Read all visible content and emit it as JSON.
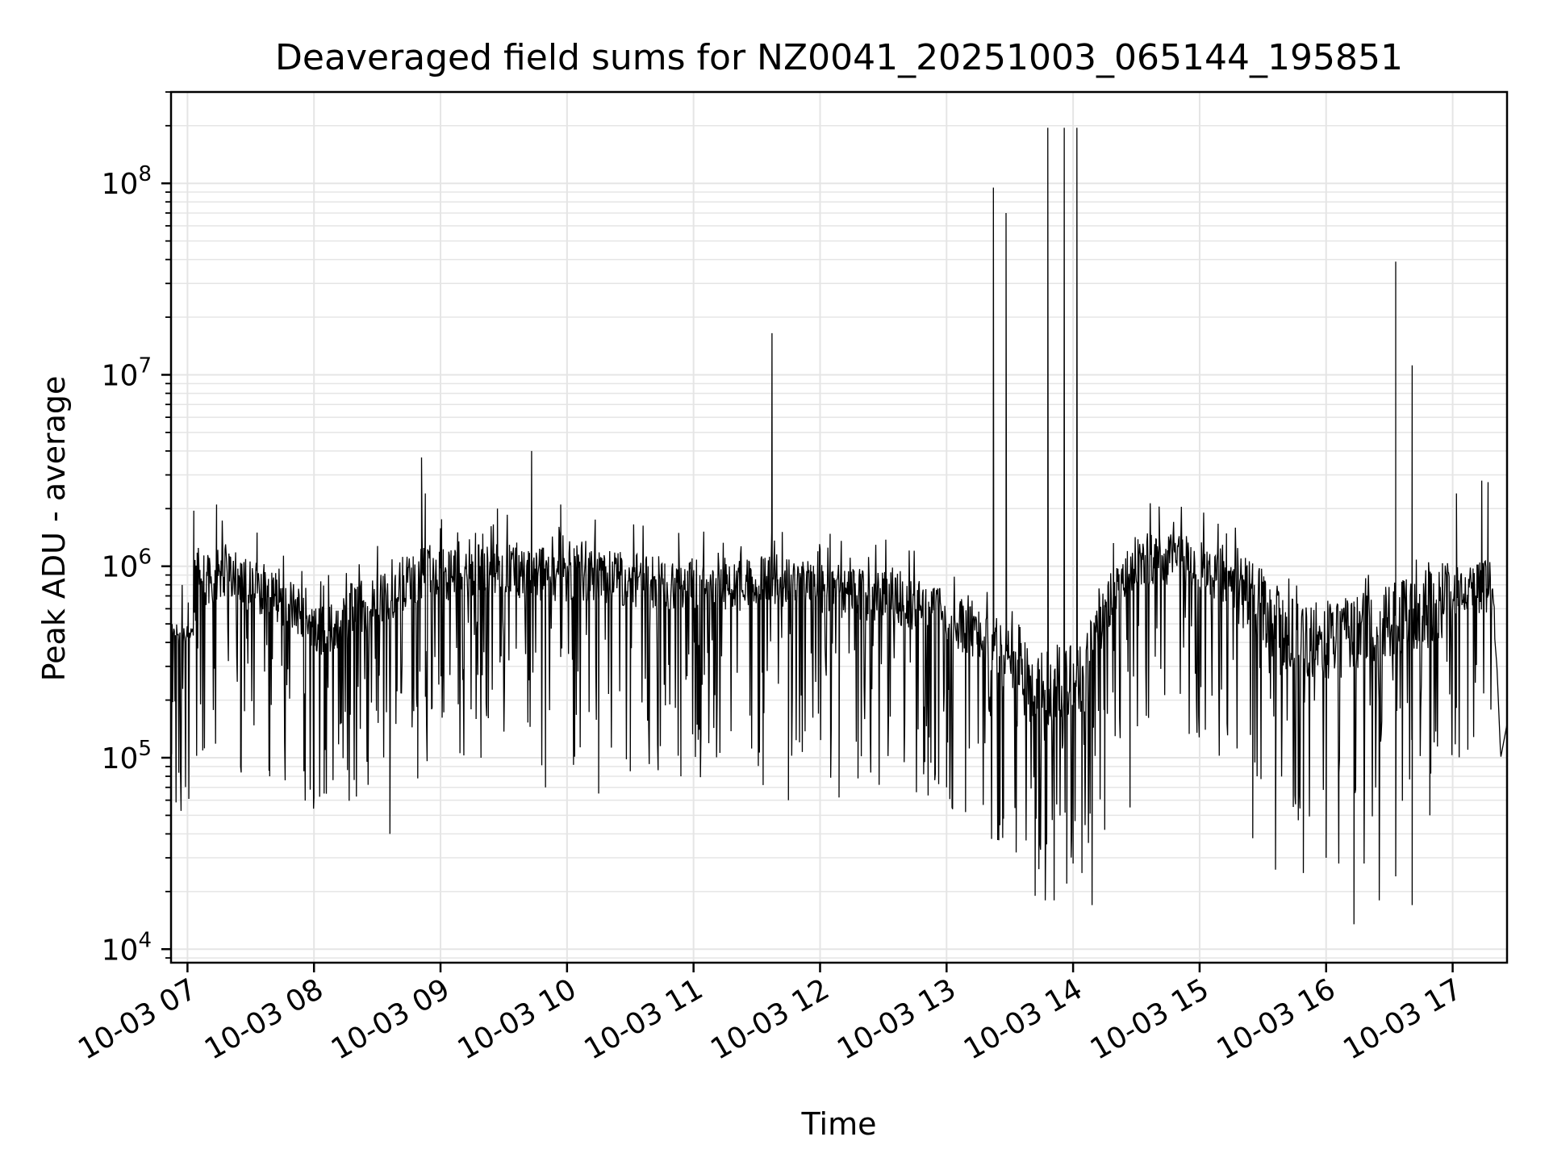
{
  "chart_data": {
    "type": "line",
    "title": "Deaveraged field sums for NZ0041_20251003_065144_195851",
    "xlabel": "Time",
    "ylabel": "Peak ADU - average",
    "yscale": "log",
    "ylim": [
      8500,
      300000000
    ],
    "xlim_hours": [
      6.87,
      17.43
    ],
    "grid": true,
    "legend": "none",
    "line_color": "#000000",
    "grid_color": "#e5e5e5",
    "x_ticks": [
      {
        "hour": 7,
        "label": "10-03 07"
      },
      {
        "hour": 8,
        "label": "10-03 08"
      },
      {
        "hour": 9,
        "label": "10-03 09"
      },
      {
        "hour": 10,
        "label": "10-03 10"
      },
      {
        "hour": 11,
        "label": "10-03 11"
      },
      {
        "hour": 12,
        "label": "10-03 12"
      },
      {
        "hour": 13,
        "label": "10-03 13"
      },
      {
        "hour": 14,
        "label": "10-03 14"
      },
      {
        "hour": 15,
        "label": "10-03 15"
      },
      {
        "hour": 16,
        "label": "10-03 16"
      },
      {
        "hour": 17,
        "label": "10-03 17"
      }
    ],
    "y_ticks": [
      {
        "value": 10000,
        "base": "10",
        "exp": "4"
      },
      {
        "value": 100000,
        "base": "10",
        "exp": "5"
      },
      {
        "value": 1000000,
        "base": "10",
        "exp": "6"
      },
      {
        "value": 10000000,
        "base": "10",
        "exp": "7"
      },
      {
        "value": 100000000,
        "base": "10",
        "exp": "8"
      }
    ],
    "series": [
      {
        "name": "Peak ADU - average",
        "baseline_points": [
          [
            6.87,
            500000
          ],
          [
            6.95,
            430000
          ],
          [
            7.05,
            460000
          ],
          [
            7.08,
            1100000
          ],
          [
            7.12,
            850000
          ],
          [
            7.3,
            900000
          ],
          [
            7.5,
            800000
          ],
          [
            7.7,
            700000
          ],
          [
            7.9,
            550000
          ],
          [
            8.1,
            450000
          ],
          [
            8.3,
            600000
          ],
          [
            8.5,
            650000
          ],
          [
            8.7,
            800000
          ],
          [
            8.9,
            950000
          ],
          [
            9.1,
            900000
          ],
          [
            9.3,
            950000
          ],
          [
            9.5,
            950000
          ],
          [
            9.7,
            920000
          ],
          [
            9.9,
            900000
          ],
          [
            10.1,
            880000
          ],
          [
            10.3,
            880000
          ],
          [
            10.5,
            850000
          ],
          [
            10.7,
            820000
          ],
          [
            10.9,
            800000
          ],
          [
            11.1,
            780000
          ],
          [
            11.3,
            800000
          ],
          [
            11.5,
            820000
          ],
          [
            11.7,
            800000
          ],
          [
            11.9,
            780000
          ],
          [
            12.1,
            750000
          ],
          [
            12.3,
            720000
          ],
          [
            12.5,
            700000
          ],
          [
            12.7,
            650000
          ],
          [
            12.9,
            580000
          ],
          [
            13.1,
            500000
          ],
          [
            13.3,
            400000
          ],
          [
            13.5,
            300000
          ],
          [
            13.7,
            230000
          ],
          [
            13.9,
            220000
          ],
          [
            14.1,
            280000
          ],
          [
            14.3,
            700000
          ],
          [
            14.5,
            1050000
          ],
          [
            14.7,
            1100000
          ],
          [
            14.9,
            1050000
          ],
          [
            15.1,
            950000
          ],
          [
            15.3,
            800000
          ],
          [
            15.5,
            600000
          ],
          [
            15.7,
            450000
          ],
          [
            15.9,
            400000
          ],
          [
            16.1,
            420000
          ],
          [
            16.3,
            450000
          ],
          [
            16.5,
            500000
          ],
          [
            16.7,
            550000
          ],
          [
            16.9,
            650000
          ],
          [
            17.1,
            750000
          ],
          [
            17.3,
            800000
          ],
          [
            17.35,
            300000
          ],
          [
            17.38,
            100000
          ],
          [
            17.43,
            150000
          ]
        ],
        "spikes": [
          [
            7.05,
            1950000
          ],
          [
            7.23,
            2100000
          ],
          [
            7.55,
            1500000
          ],
          [
            8.85,
            3700000
          ],
          [
            8.88,
            2400000
          ],
          [
            9.45,
            2000000
          ],
          [
            9.72,
            4000000
          ],
          [
            9.95,
            2100000
          ],
          [
            11.62,
            16500000
          ],
          [
            13.37,
            95000000
          ],
          [
            13.47,
            70000000
          ],
          [
            13.8,
            195000000
          ],
          [
            13.93,
            195000000
          ],
          [
            14.03,
            195000000
          ],
          [
            14.68,
            2050000
          ],
          [
            16.55,
            39000000
          ],
          [
            16.68,
            11200000
          ],
          [
            17.03,
            2400000
          ],
          [
            17.23,
            2800000
          ],
          [
            17.28,
            2750000
          ]
        ],
        "dips": [
          [
            7.12,
            160000
          ],
          [
            7.42,
            90000
          ],
          [
            7.65,
            80000
          ],
          [
            7.92,
            85000
          ],
          [
            8.0,
            62000
          ],
          [
            8.08,
            65000
          ],
          [
            8.6,
            40000
          ],
          [
            8.82,
            78000
          ],
          [
            9.32,
            100000
          ],
          [
            9.83,
            70000
          ],
          [
            10.25,
            65000
          ],
          [
            10.5,
            85000
          ],
          [
            10.9,
            80000
          ],
          [
            11.55,
            72000
          ],
          [
            11.75,
            60000
          ],
          [
            12.15,
            62000
          ],
          [
            12.3,
            78000
          ],
          [
            13.0,
            70000
          ],
          [
            13.15,
            52000
          ],
          [
            13.45,
            48000
          ],
          [
            13.55,
            32000
          ],
          [
            13.7,
            19000
          ],
          [
            13.78,
            18000
          ],
          [
            13.85,
            18000
          ],
          [
            13.95,
            22000
          ],
          [
            14.0,
            28000
          ],
          [
            14.07,
            25000
          ],
          [
            14.15,
            17000
          ],
          [
            14.25,
            42000
          ],
          [
            14.45,
            55000
          ],
          [
            15.42,
            38000
          ],
          [
            15.6,
            26000
          ],
          [
            15.82,
            25000
          ],
          [
            16.0,
            30000
          ],
          [
            16.1,
            28000
          ],
          [
            16.22,
            13500
          ],
          [
            16.3,
            28000
          ],
          [
            16.42,
            18000
          ],
          [
            16.55,
            24000
          ],
          [
            16.68,
            17000
          ],
          [
            16.82,
            50000
          ],
          [
            17.12,
            110000
          ]
        ]
      }
    ]
  }
}
